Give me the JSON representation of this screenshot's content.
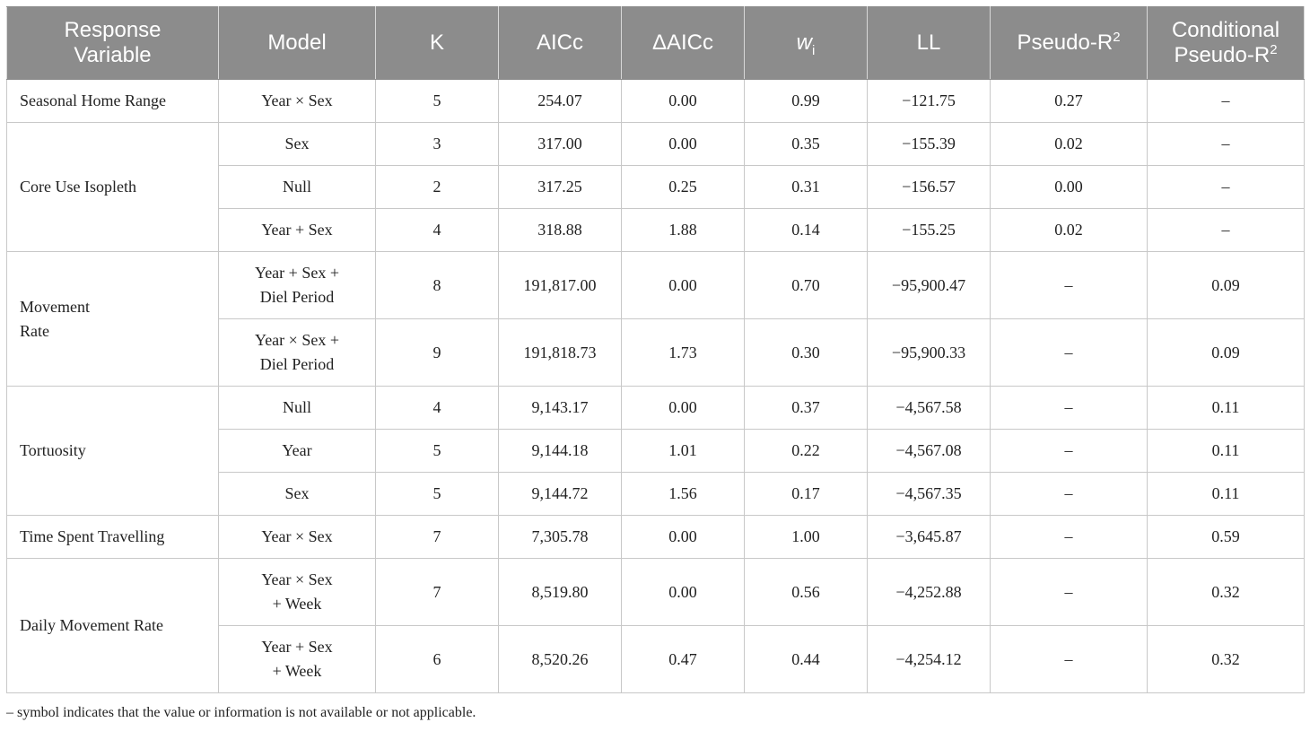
{
  "table": {
    "headers": {
      "response_l1": "Response",
      "response_l2": "Variable",
      "model": "Model",
      "k": "K",
      "aicc": "AICc",
      "delta_aicc": "ΔAICc",
      "w_base": "w",
      "w_sub": "i",
      "ll": "LL",
      "pseudo_base": "Pseudo-R",
      "pseudo_sup": "2",
      "cond_l1": "Conditional",
      "cond_l2_base": "Pseudo-R",
      "cond_l2_sup": "2"
    },
    "responses": {
      "seasonal": "Seasonal Home Range",
      "core": "Core Use Isopleth",
      "movement_l1": "Movement",
      "movement_l2": "Rate",
      "tortuosity": "Tortuosity",
      "travel": "Time Spent Travelling",
      "daily": "Daily Movement Rate"
    },
    "rows": [
      {
        "model": "Year × Sex",
        "k": "5",
        "aicc": "254.07",
        "delta": "0.00",
        "w": "0.99",
        "ll": "−121.75",
        "pseudo": "0.27",
        "cond": "–"
      },
      {
        "model": "Sex",
        "k": "3",
        "aicc": "317.00",
        "delta": "0.00",
        "w": "0.35",
        "ll": "−155.39",
        "pseudo": "0.02",
        "cond": "–"
      },
      {
        "model": "Null",
        "k": "2",
        "aicc": "317.25",
        "delta": "0.25",
        "w": "0.31",
        "ll": "−156.57",
        "pseudo": "0.00",
        "cond": "–"
      },
      {
        "model": "Year + Sex",
        "k": "4",
        "aicc": "318.88",
        "delta": "1.88",
        "w": "0.14",
        "ll": "−155.25",
        "pseudo": "0.02",
        "cond": "–"
      },
      {
        "model_l1": "Year + Sex +",
        "model_l2": "Diel Period",
        "k": "8",
        "aicc": "191,817.00",
        "delta": "0.00",
        "w": "0.70",
        "ll": "−95,900.47",
        "pseudo": "–",
        "cond": "0.09"
      },
      {
        "model_l1": "Year × Sex +",
        "model_l2": "Diel Period",
        "k": "9",
        "aicc": "191,818.73",
        "delta": "1.73",
        "w": "0.30",
        "ll": "−95,900.33",
        "pseudo": "–",
        "cond": "0.09"
      },
      {
        "model": "Null",
        "k": "4",
        "aicc": "9,143.17",
        "delta": "0.00",
        "w": "0.37",
        "ll": "−4,567.58",
        "pseudo": "–",
        "cond": "0.11"
      },
      {
        "model": "Year",
        "k": "5",
        "aicc": "9,144.18",
        "delta": "1.01",
        "w": "0.22",
        "ll": "−4,567.08",
        "pseudo": "–",
        "cond": "0.11"
      },
      {
        "model": "Sex",
        "k": "5",
        "aicc": "9,144.72",
        "delta": "1.56",
        "w": "0.17",
        "ll": "−4,567.35",
        "pseudo": "–",
        "cond": "0.11"
      },
      {
        "model": "Year × Sex",
        "k": "7",
        "aicc": "7,305.78",
        "delta": "0.00",
        "w": "1.00",
        "ll": "−3,645.87",
        "pseudo": "–",
        "cond": "0.59"
      },
      {
        "model_l1": "Year × Sex",
        "model_l2": "+ Week",
        "k": "7",
        "aicc": "8,519.80",
        "delta": "0.00",
        "w": "0.56",
        "ll": "−4,252.88",
        "pseudo": "–",
        "cond": "0.32"
      },
      {
        "model_l1": "Year + Sex",
        "model_l2": "+ Week",
        "k": "6",
        "aicc": "8,520.26",
        "delta": "0.47",
        "w": "0.44",
        "ll": "−4,254.12",
        "pseudo": "–",
        "cond": "0.32"
      }
    ]
  },
  "footnote": "– symbol indicates that the value or information is not available or not applicable."
}
